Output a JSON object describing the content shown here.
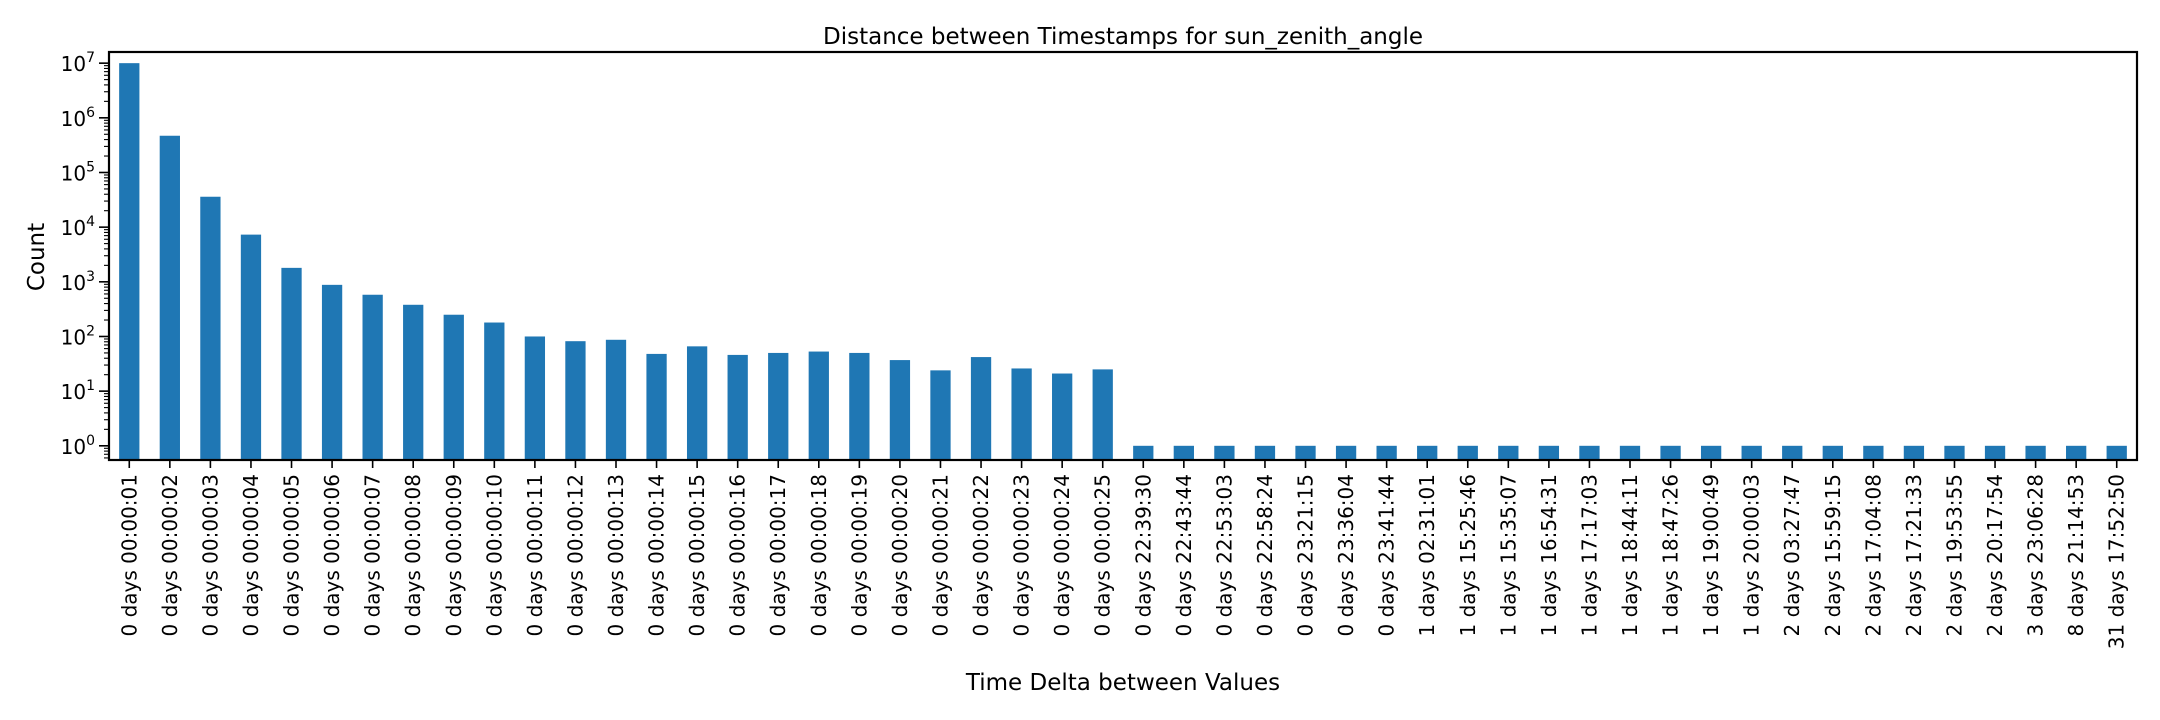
{
  "chart_data": {
    "type": "bar",
    "title": "Distance between Timestamps for sun_zenith_angle",
    "xlabel": "Time Delta between Values",
    "ylabel": "Count",
    "yscale": "log",
    "ylim": [
      0.55,
      16000000
    ],
    "grid": false,
    "bar_color": "#1f77b4",
    "y_ticks": [
      {
        "value": 1,
        "base": "10",
        "exp": "0"
      },
      {
        "value": 10,
        "base": "10",
        "exp": "1"
      },
      {
        "value": 100,
        "base": "10",
        "exp": "2"
      },
      {
        "value": 1000,
        "base": "10",
        "exp": "3"
      },
      {
        "value": 10000,
        "base": "10",
        "exp": "4"
      },
      {
        "value": 100000,
        "base": "10",
        "exp": "5"
      },
      {
        "value": 1000000,
        "base": "10",
        "exp": "6"
      },
      {
        "value": 10000000,
        "base": "10",
        "exp": "7"
      }
    ],
    "categories": [
      "0 days 00:00:01",
      "0 days 00:00:02",
      "0 days 00:00:03",
      "0 days 00:00:04",
      "0 days 00:00:05",
      "0 days 00:00:06",
      "0 days 00:00:07",
      "0 days 00:00:08",
      "0 days 00:00:09",
      "0 days 00:00:10",
      "0 days 00:00:11",
      "0 days 00:00:12",
      "0 days 00:00:13",
      "0 days 00:00:14",
      "0 days 00:00:15",
      "0 days 00:00:16",
      "0 days 00:00:17",
      "0 days 00:00:18",
      "0 days 00:00:19",
      "0 days 00:00:20",
      "0 days 00:00:21",
      "0 days 00:00:22",
      "0 days 00:00:23",
      "0 days 00:00:24",
      "0 days 00:00:25",
      "0 days 22:39:30",
      "0 days 22:43:44",
      "0 days 22:53:03",
      "0 days 22:58:24",
      "0 days 23:21:15",
      "0 days 23:36:04",
      "0 days 23:41:44",
      "1 days 02:31:01",
      "1 days 15:25:46",
      "1 days 15:35:07",
      "1 days 16:54:31",
      "1 days 17:17:03",
      "1 days 18:44:11",
      "1 days 18:47:26",
      "1 days 19:00:49",
      "1 days 20:00:03",
      "2 days 03:27:47",
      "2 days 15:59:15",
      "2 days 17:04:08",
      "2 days 17:21:33",
      "2 days 19:53:55",
      "2 days 20:17:54",
      "3 days 23:06:28",
      "8 days 21:14:53",
      "31 days 17:52:50"
    ],
    "values": [
      10000000,
      470000,
      36000,
      7300,
      1800,
      880,
      580,
      380,
      250,
      180,
      100,
      82,
      87,
      48,
      66,
      46,
      50,
      53,
      50,
      37,
      24,
      42,
      26,
      21,
      25,
      1,
      1,
      1,
      1,
      1,
      1,
      1,
      1,
      1,
      1,
      1,
      1,
      1,
      1,
      1,
      1,
      1,
      1,
      1,
      1,
      1,
      1,
      1,
      1,
      1
    ]
  }
}
